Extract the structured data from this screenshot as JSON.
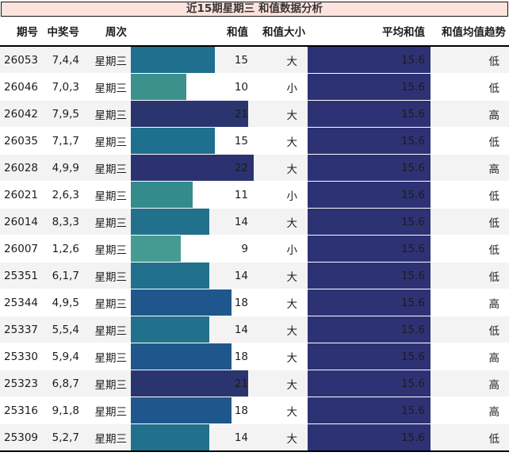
{
  "title": "近15期星期三 和值数据分析",
  "columns": [
    "期号",
    "中奖号",
    "周次",
    "和值",
    "和值大小",
    "平均和值",
    "和值均值趋势"
  ],
  "colors": {
    "title_bg": "#fde3de",
    "title_border": "#141414",
    "stripe_gray": "#f3f3f3",
    "avg_bar": "#2d3274",
    "text": "#1c1c1c"
  },
  "chart_data": {
    "type": "table",
    "title": "近15期星期三 和值数据分析",
    "columns": [
      "期号",
      "中奖号",
      "周次",
      "和值",
      "和值大小",
      "平均和值",
      "和值均值趋势"
    ],
    "sum_bar_axis": {
      "min": 0,
      "max": 22
    },
    "avg_value": "15.6",
    "avg_bar_color": "#2d3274",
    "rows": [
      {
        "period": "26053",
        "win_numbers": "7,4,4",
        "weekday": "星期三",
        "sum": 15,
        "sum_bar_color": "#1f6f8e",
        "size": "大",
        "avg": "15.6",
        "trend": "低"
      },
      {
        "period": "26046",
        "win_numbers": "7,0,3",
        "weekday": "星期三",
        "sum": 10,
        "sum_bar_color": "#3d918d",
        "size": "小",
        "avg": "15.6",
        "trend": "低"
      },
      {
        "period": "26042",
        "win_numbers": "7,9,5",
        "weekday": "星期三",
        "sum": 21,
        "sum_bar_color": "#2a356f",
        "size": "大",
        "avg": "15.6",
        "trend": "高"
      },
      {
        "period": "26035",
        "win_numbers": "7,1,7",
        "weekday": "星期三",
        "sum": 15,
        "sum_bar_color": "#1f6f8e",
        "size": "大",
        "avg": "15.6",
        "trend": "低"
      },
      {
        "period": "26028",
        "win_numbers": "4,9,9",
        "weekday": "星期三",
        "sum": 22,
        "sum_bar_color": "#2c3270",
        "size": "大",
        "avg": "15.6",
        "trend": "高"
      },
      {
        "period": "26021",
        "win_numbers": "2,6,3",
        "weekday": "星期三",
        "sum": 11,
        "sum_bar_color": "#348b8b",
        "size": "小",
        "avg": "15.6",
        "trend": "低"
      },
      {
        "period": "26014",
        "win_numbers": "8,3,3",
        "weekday": "星期三",
        "sum": 14,
        "sum_bar_color": "#21718c",
        "size": "大",
        "avg": "15.6",
        "trend": "低"
      },
      {
        "period": "26007",
        "win_numbers": "1,2,6",
        "weekday": "星期三",
        "sum": 9,
        "sum_bar_color": "#459a92",
        "size": "小",
        "avg": "15.6",
        "trend": "低"
      },
      {
        "period": "25351",
        "win_numbers": "6,1,7",
        "weekday": "星期三",
        "sum": 14,
        "sum_bar_color": "#21718c",
        "size": "大",
        "avg": "15.6",
        "trend": "低"
      },
      {
        "period": "25344",
        "win_numbers": "4,9,5",
        "weekday": "星期三",
        "sum": 18,
        "sum_bar_color": "#1f578c",
        "size": "大",
        "avg": "15.6",
        "trend": "高"
      },
      {
        "period": "25337",
        "win_numbers": "5,5,4",
        "weekday": "星期三",
        "sum": 14,
        "sum_bar_color": "#21718c",
        "size": "大",
        "avg": "15.6",
        "trend": "低"
      },
      {
        "period": "25330",
        "win_numbers": "5,9,4",
        "weekday": "星期三",
        "sum": 18,
        "sum_bar_color": "#1f578c",
        "size": "大",
        "avg": "15.6",
        "trend": "高"
      },
      {
        "period": "25323",
        "win_numbers": "6,8,7",
        "weekday": "星期三",
        "sum": 21,
        "sum_bar_color": "#2a356f",
        "size": "大",
        "avg": "15.6",
        "trend": "高"
      },
      {
        "period": "25316",
        "win_numbers": "9,1,8",
        "weekday": "星期三",
        "sum": 18,
        "sum_bar_color": "#1f578c",
        "size": "大",
        "avg": "15.6",
        "trend": "高"
      },
      {
        "period": "25309",
        "win_numbers": "5,2,7",
        "weekday": "星期三",
        "sum": 14,
        "sum_bar_color": "#21718c",
        "size": "大",
        "avg": "15.6",
        "trend": "低"
      }
    ]
  }
}
